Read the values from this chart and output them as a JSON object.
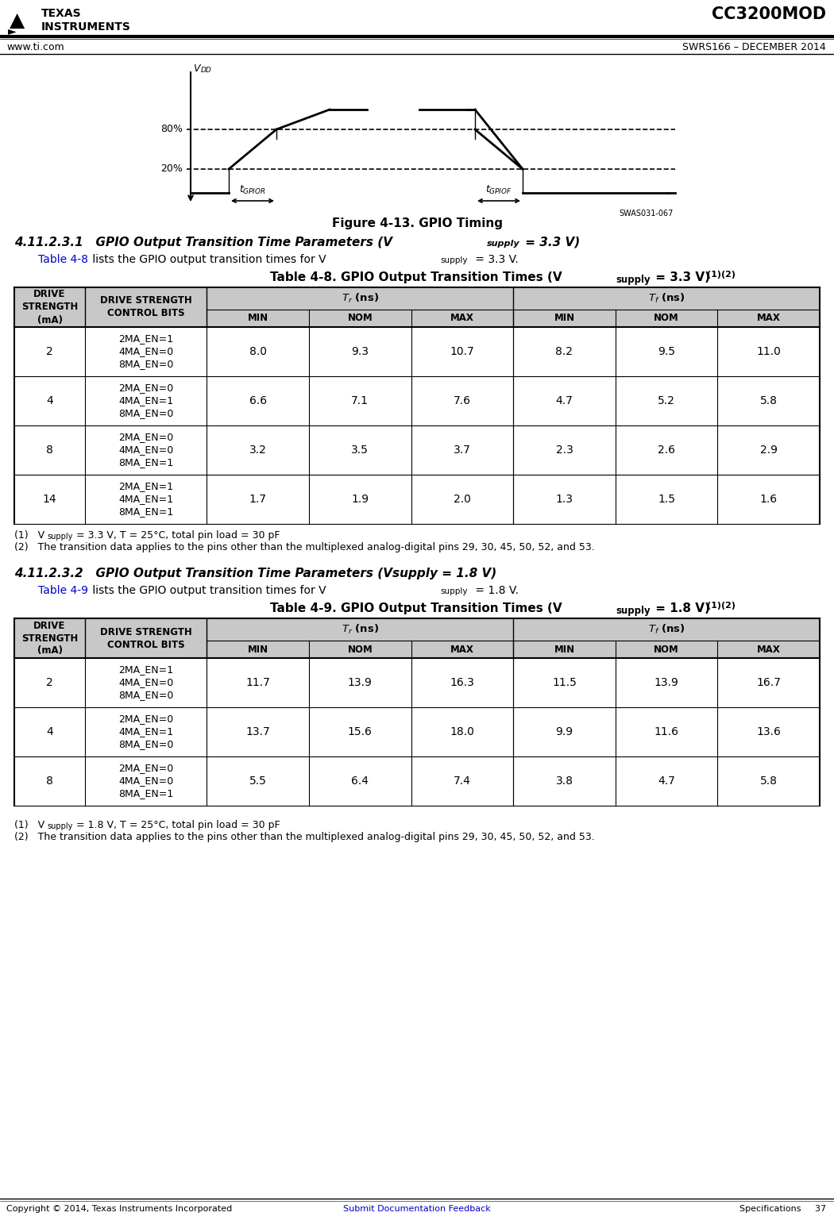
{
  "header_left": "www.ti.com",
  "header_right": "SWRS166 – DECEMBER 2014",
  "header_title": "CC3200MOD",
  "figure_caption": "Figure 4-13. GPIO Timing",
  "figure_label": "SWAS031-067",
  "table1_rows": [
    [
      "2",
      "2MA_EN=1\n4MA_EN=0\n8MA_EN=0",
      "8.0",
      "9.3",
      "10.7",
      "8.2",
      "9.5",
      "11.0"
    ],
    [
      "4",
      "2MA_EN=0\n4MA_EN=1\n8MA_EN=0",
      "6.6",
      "7.1",
      "7.6",
      "4.7",
      "5.2",
      "5.8"
    ],
    [
      "8",
      "2MA_EN=0\n4MA_EN=0\n8MA_EN=1",
      "3.2",
      "3.5",
      "3.7",
      "2.3",
      "2.6",
      "2.9"
    ],
    [
      "14",
      "2MA_EN=1\n4MA_EN=1\n8MA_EN=1",
      "1.7",
      "1.9",
      "2.0",
      "1.3",
      "1.5",
      "1.6"
    ]
  ],
  "table2_rows": [
    [
      "2",
      "2MA_EN=1\n4MA_EN=0\n8MA_EN=0",
      "11.7",
      "13.9",
      "16.3",
      "11.5",
      "13.9",
      "16.7"
    ],
    [
      "4",
      "2MA_EN=0\n4MA_EN=1\n8MA_EN=0",
      "13.7",
      "15.6",
      "18.0",
      "9.9",
      "11.6",
      "13.6"
    ],
    [
      "8",
      "2MA_EN=0\n4MA_EN=0\n8MA_EN=1",
      "5.5",
      "6.4",
      "7.4",
      "3.8",
      "4.7",
      "5.8"
    ]
  ],
  "bg_color": "#ffffff",
  "table_header_bg": "#c8c8c8",
  "link_color": "#0000cc",
  "note1_33": " = 3.3 V, T = 25°C, total pin load = 30 pF",
  "note1_18": " = 1.8 V, T = 25°C, total pin load = 30 pF",
  "note2": "The transition data applies to the pins other than the multiplexed analog-digital pins 29, 30, 45, 50, 52, and 53.",
  "footer_left": "Copyright © 2014, Texas Instruments Incorporated",
  "footer_center": "Submit Documentation Feedback",
  "footer_right": "Specifications     37"
}
